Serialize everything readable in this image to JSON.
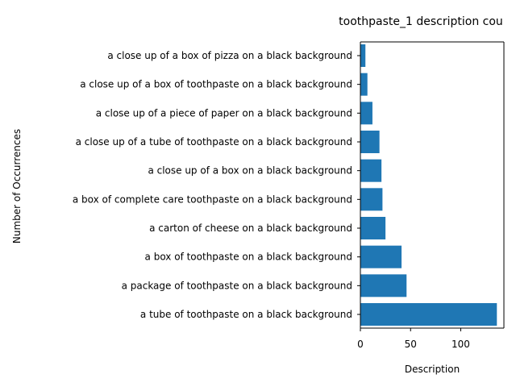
{
  "chart_data": {
    "type": "bar",
    "orientation": "horizontal",
    "title": "toothpaste_1 description cou",
    "xlabel": "Description",
    "ylabel": "Number of Occurrences",
    "categories": [
      "a tube of toothpaste on a black background",
      "a package of toothpaste on a black background",
      "a box of toothpaste on a black background",
      "a carton of cheese on a black background",
      "a box of complete care toothpaste on a black background",
      "a close up of a box on a black background",
      "a close up of a tube of toothpaste on a black background",
      "a close up of a piece of paper on a black background",
      "a close up of a box of toothpaste on a black background",
      "a close up of a box of pizza on a black background"
    ],
    "values": [
      136,
      46,
      41,
      25,
      22,
      21,
      19,
      12,
      7,
      5
    ],
    "xticks": [
      0,
      50,
      100
    ],
    "xlim": [
      0,
      143
    ],
    "grid": false,
    "bar_color": "#1f77b4"
  }
}
